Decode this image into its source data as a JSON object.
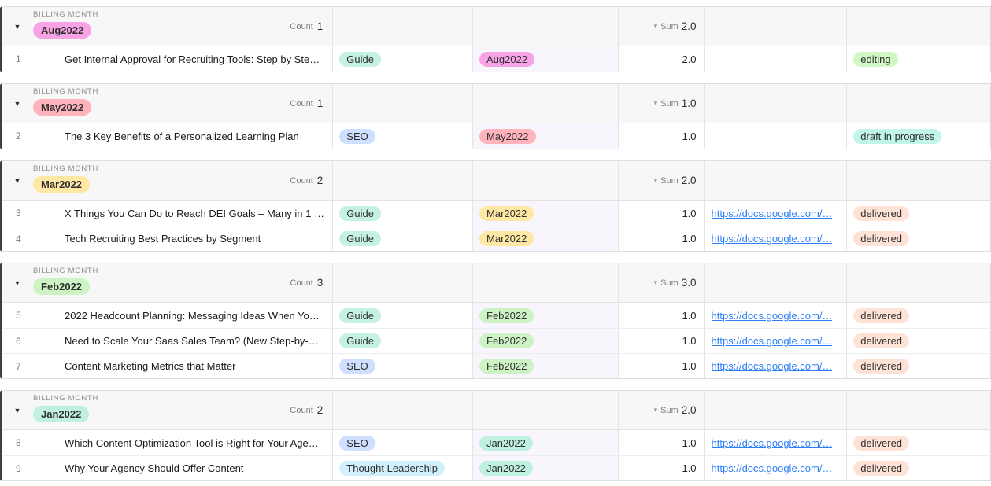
{
  "group_label": "BILLING MONTH",
  "count_label": "Count",
  "sum_label": "Sum",
  "colors": {
    "group_header_bg": "#f7f7f7",
    "group_left_border": "#3f3f3f",
    "month_column_tint": "#f8f5fd",
    "link": "#2d7ff9",
    "tag_guide": "#c5f2e0",
    "tag_seo": "#cfdfff",
    "tag_thought_leadership": "#d0f0fd",
    "month_aug2022": "#f8a3e6",
    "month_may2022": "#ffb3bd",
    "month_mar2022": "#ffe8a3",
    "month_feb2022": "#cdf3c5",
    "month_jan2022": "#bff0e0",
    "status_editing": "#d1f7c4",
    "status_draft_in_progress": "#c2f5e9",
    "status_delivered": "#fee2d5"
  },
  "groups": [
    {
      "month": "Aug2022",
      "month_color": "#f8a3e6",
      "count": "1",
      "sum": "2.0",
      "rows": [
        {
          "num": "1",
          "title": "Get Internal Approval for Recruiting Tools: Step by Ste…",
          "tag": "Guide",
          "tag_color": "#c5f2e0",
          "month": "Aug2022",
          "month_color": "#f8a3e6",
          "value": "2.0",
          "link": "",
          "status": "editing",
          "status_color": "#d1f7c4"
        }
      ]
    },
    {
      "month": "May2022",
      "month_color": "#ffb3bd",
      "count": "1",
      "sum": "1.0",
      "rows": [
        {
          "num": "2",
          "title": "The 3 Key Benefits of a Personalized Learning Plan",
          "tag": "SEO",
          "tag_color": "#cfdfff",
          "month": "May2022",
          "month_color": "#ffb3bd",
          "value": "1.0",
          "link": "",
          "status": "draft in progress",
          "status_color": "#c2f5e9"
        }
      ]
    },
    {
      "month": "Mar2022",
      "month_color": "#ffe8a3",
      "count": "2",
      "sum": "2.0",
      "rows": [
        {
          "num": "3",
          "title": "X Things You Can Do to Reach DEI Goals – Many in 1 …",
          "tag": "Guide",
          "tag_color": "#c5f2e0",
          "month": "Mar2022",
          "month_color": "#ffe8a3",
          "value": "1.0",
          "link": "https://docs.google.com/…",
          "status": "delivered",
          "status_color": "#fee2d5"
        },
        {
          "num": "4",
          "title": "Tech Recruiting Best Practices by Segment",
          "tag": "Guide",
          "tag_color": "#c5f2e0",
          "month": "Mar2022",
          "month_color": "#ffe8a3",
          "value": "1.0",
          "link": "https://docs.google.com/…",
          "status": "delivered",
          "status_color": "#fee2d5"
        }
      ]
    },
    {
      "month": "Feb2022",
      "month_color": "#cdf3c5",
      "count": "3",
      "sum": "3.0",
      "rows": [
        {
          "num": "5",
          "title": "2022 Headcount Planning: Messaging Ideas When Yo…",
          "tag": "Guide",
          "tag_color": "#c5f2e0",
          "month": "Feb2022",
          "month_color": "#cdf3c5",
          "value": "1.0",
          "link": "https://docs.google.com/…",
          "status": "delivered",
          "status_color": "#fee2d5"
        },
        {
          "num": "6",
          "title": "Need to Scale Your Saas Sales Team? (New Step-by-…",
          "tag": "Guide",
          "tag_color": "#c5f2e0",
          "month": "Feb2022",
          "month_color": "#cdf3c5",
          "value": "1.0",
          "link": "https://docs.google.com/…",
          "status": "delivered",
          "status_color": "#fee2d5"
        },
        {
          "num": "7",
          "title": "Content Marketing Metrics that Matter",
          "tag": "SEO",
          "tag_color": "#cfdfff",
          "month": "Feb2022",
          "month_color": "#cdf3c5",
          "value": "1.0",
          "link": "https://docs.google.com/…",
          "status": "delivered",
          "status_color": "#fee2d5"
        }
      ]
    },
    {
      "month": "Jan2022",
      "month_color": "#bff0e0",
      "count": "2",
      "sum": "2.0",
      "rows": [
        {
          "num": "8",
          "title": "Which Content Optimization Tool is Right for Your Age…",
          "tag": "SEO",
          "tag_color": "#cfdfff",
          "month": "Jan2022",
          "month_color": "#bff0e0",
          "value": "1.0",
          "link": "https://docs.google.com/…",
          "status": "delivered",
          "status_color": "#fee2d5"
        },
        {
          "num": "9",
          "title": "Why Your Agency Should Offer Content",
          "tag": "Thought Leadership",
          "tag_color": "#d0f0fd",
          "month": "Jan2022",
          "month_color": "#bff0e0",
          "value": "1.0",
          "link": "https://docs.google.com/…",
          "status": "delivered",
          "status_color": "#fee2d5"
        }
      ]
    }
  ]
}
